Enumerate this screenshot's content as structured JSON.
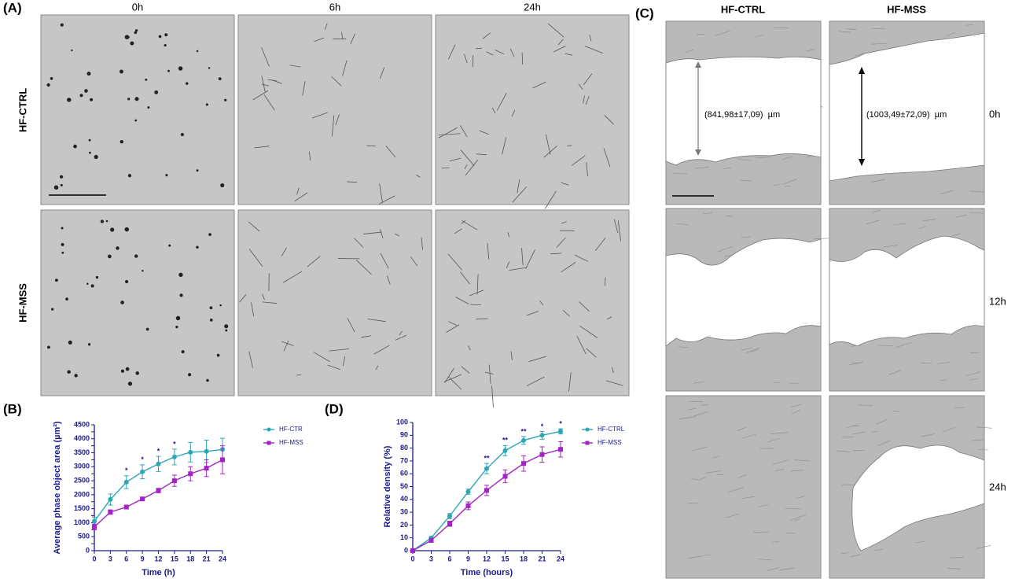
{
  "panels": {
    "a": {
      "label": "(A)",
      "columns": [
        "0h",
        "6h",
        "24h"
      ],
      "rows": [
        "HF-CTRL",
        "HF-MSS"
      ]
    },
    "c": {
      "label": "(C)",
      "columns": [
        "HF-CTRL",
        "HF-MSS"
      ],
      "rows": [
        "0h",
        "12h",
        "24h"
      ],
      "measurements": [
        "(841,98±17,09)  µm",
        "(1003,49±72,09)  µm"
      ]
    }
  },
  "chart_data": [
    {
      "type": "line",
      "panel_label": "(B)",
      "x_label": "Time (h)",
      "y_label": "Average phase object area (µm²)",
      "x": [
        0,
        3,
        6,
        9,
        12,
        15,
        18,
        21,
        24
      ],
      "xlim": [
        0,
        24
      ],
      "xticks": [
        0,
        3,
        6,
        9,
        12,
        15,
        18,
        21,
        24
      ],
      "ylim": [
        0,
        4500
      ],
      "yticks": [
        0,
        250,
        500,
        750,
        1000,
        1250,
        1500,
        1750,
        2000,
        2250,
        2500,
        2750,
        3000,
        3250,
        3500,
        3750,
        4000,
        4250,
        4500
      ],
      "series": [
        {
          "name": "HF-CTR",
          "color": "#2aa6b6",
          "values": [
            1050,
            1830,
            2450,
            2820,
            3100,
            3350,
            3520,
            3550,
            3620
          ],
          "errors": [
            150,
            200,
            230,
            250,
            270,
            280,
            350,
            400,
            400
          ]
        },
        {
          "name": "HF-MSS",
          "color": "#a323c4",
          "values": [
            850,
            1380,
            1560,
            1850,
            2150,
            2500,
            2750,
            2950,
            3250
          ],
          "errors": [
            100,
            80,
            60,
            60,
            80,
            200,
            250,
            300,
            500
          ]
        }
      ],
      "annotations": [
        {
          "x": 6,
          "text": "*"
        },
        {
          "x": 9,
          "text": "*"
        },
        {
          "x": 12,
          "text": "*"
        },
        {
          "x": 15,
          "text": "*"
        }
      ]
    },
    {
      "type": "line",
      "panel_label": "(D)",
      "x_label": "Time (hours)",
      "y_label": "Relative density (%)",
      "x": [
        0,
        3,
        6,
        9,
        12,
        15,
        18,
        21,
        24
      ],
      "xlim": [
        0,
        24
      ],
      "xticks": [
        0,
        3,
        6,
        9,
        12,
        15,
        18,
        21,
        24
      ],
      "ylim": [
        0,
        100
      ],
      "yticks": [
        0,
        10,
        20,
        30,
        40,
        50,
        60,
        70,
        80,
        90,
        100
      ],
      "series": [
        {
          "name": "HF-CTRL",
          "color": "#2aa6b6",
          "values": [
            0,
            10,
            27,
            46,
            64,
            78,
            86,
            90,
            93
          ],
          "errors": [
            0,
            1,
            2,
            2,
            4,
            4,
            3,
            3,
            2
          ]
        },
        {
          "name": "HF-MSS",
          "color": "#a323c4",
          "values": [
            0,
            8,
            21,
            35,
            47,
            58,
            68,
            75,
            79
          ],
          "errors": [
            0,
            1,
            2,
            3,
            4,
            5,
            6,
            6,
            6
          ]
        }
      ],
      "annotations": [
        {
          "x": 12,
          "text": "**"
        },
        {
          "x": 15,
          "text": "**"
        },
        {
          "x": 18,
          "text": "**"
        },
        {
          "x": 21,
          "text": "*"
        },
        {
          "x": 24,
          "text": "*"
        }
      ]
    }
  ]
}
